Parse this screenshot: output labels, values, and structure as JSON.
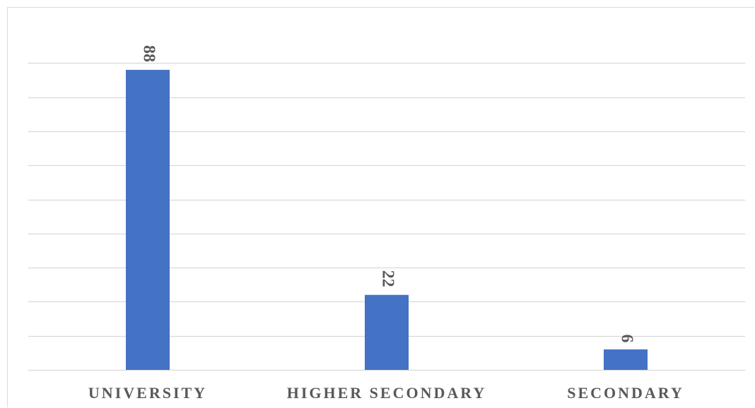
{
  "chart_data": {
    "type": "bar",
    "categories": [
      "UNIVERSITY",
      "HIGHER SECONDARY",
      "SECONDARY"
    ],
    "values": [
      88,
      22,
      6
    ],
    "title": "",
    "xlabel": "",
    "ylabel": "",
    "ylim": [
      0,
      90
    ],
    "grid": true,
    "bar_color": "#4472c4",
    "gridline_color": "#d9d9d9",
    "label_color": "#595959",
    "data_labels_rotated": true
  }
}
